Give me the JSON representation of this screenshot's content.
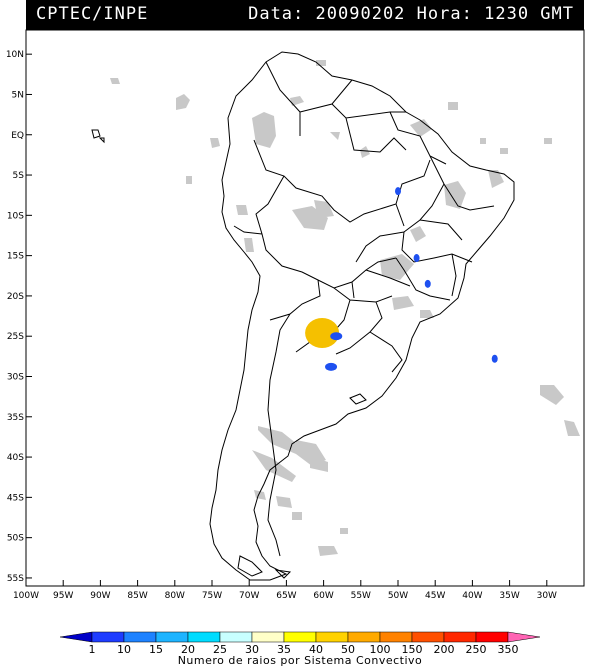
{
  "header": {
    "source": "CPTEC/INPE",
    "date_label": "Data:",
    "date": "20090202",
    "time_label": "Hora:",
    "time": "1230 GMT"
  },
  "map": {
    "lon_range": [
      -100,
      -25
    ],
    "lat_range": [
      -56,
      13
    ],
    "lon_ticks": [
      "100W",
      "95W",
      "90W",
      "85W",
      "80W",
      "75W",
      "70W",
      "65W",
      "60W",
      "55W",
      "50W",
      "45W",
      "40W",
      "35W",
      "30W"
    ],
    "lat_ticks": [
      "10N",
      "5N",
      "EQ",
      "5S",
      "10S",
      "15S",
      "20S",
      "25S",
      "30S",
      "35S",
      "40S",
      "45S",
      "50S",
      "55S"
    ],
    "colors": {
      "coast": "#000000",
      "cloud": "#c8c8c8",
      "blue": "#1e50f0",
      "yellow": "#f5c000"
    },
    "convective_systems": [
      {
        "lon": -60.2,
        "lat": -24.6,
        "level": "50",
        "color": "#f5c000"
      },
      {
        "lon": -58.3,
        "lat": -25.0,
        "level": "10",
        "color": "#1e50f0"
      },
      {
        "lon": -59.0,
        "lat": -28.8,
        "level": "10",
        "color": "#1e50f0"
      },
      {
        "lon": -50.0,
        "lat": -7.0,
        "level": "1",
        "color": "#1e50f0"
      },
      {
        "lon": -47.5,
        "lat": -15.3,
        "level": "1",
        "color": "#1e50f0"
      },
      {
        "lon": -46.0,
        "lat": -18.5,
        "level": "1",
        "color": "#1e50f0"
      },
      {
        "lon": -37.0,
        "lat": -27.8,
        "level": "1",
        "color": "#1e50f0"
      }
    ]
  },
  "legend": {
    "caption": "Numero de raios por Sistema Convectivo",
    "labels": [
      "1",
      "10",
      "15",
      "20",
      "25",
      "30",
      "35",
      "40",
      "50",
      "100",
      "150",
      "200",
      "250",
      "350"
    ],
    "colors": [
      "#0000c8",
      "#1e3cff",
      "#1e82ff",
      "#1eb4ff",
      "#00dcff",
      "#c8ffff",
      "#ffffc8",
      "#ffff00",
      "#ffd200",
      "#ffaa00",
      "#ff8200",
      "#ff5000",
      "#ff2800",
      "#ff0000",
      "#ff64b4"
    ]
  }
}
